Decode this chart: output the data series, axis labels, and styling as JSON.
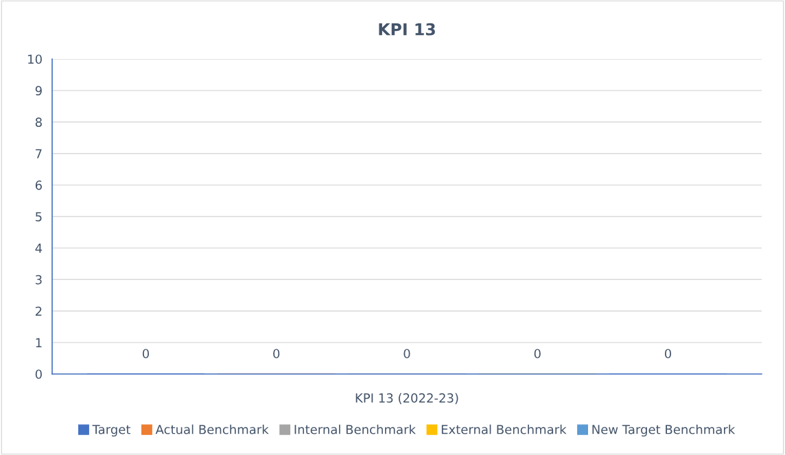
{
  "chart_data": {
    "type": "bar",
    "title": "KPI 13",
    "categories": [
      "KPI 13 (2022-23)"
    ],
    "series": [
      {
        "name": "Target",
        "color": "#4472c4",
        "values": [
          0
        ]
      },
      {
        "name": "Actual Benchmark",
        "color": "#ed7d31",
        "values": [
          0
        ]
      },
      {
        "name": "Internal Benchmark",
        "color": "#a5a5a5",
        "values": [
          0
        ]
      },
      {
        "name": "External Benchmark",
        "color": "#ffc000",
        "values": [
          0
        ]
      },
      {
        "name": "New Target Benchmark",
        "color": "#5b9bd5",
        "values": [
          0
        ]
      }
    ],
    "ylim": [
      0,
      10
    ],
    "yticks": [
      0,
      1,
      2,
      3,
      4,
      5,
      6,
      7,
      8,
      9,
      10
    ],
    "grid": "y",
    "legend": "bottom",
    "data_labels": true
  }
}
